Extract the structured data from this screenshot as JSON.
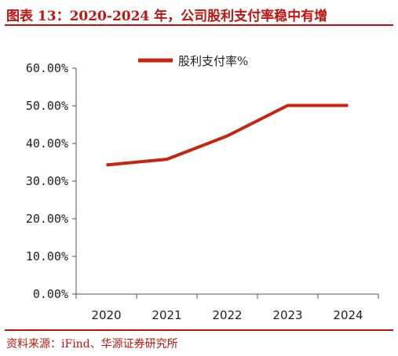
{
  "title": "图表 13：2020-2024 年，公司股利支付率稳中有增",
  "source": "资料来源：iFind、华源证券研究所",
  "colors": {
    "accent": "#c0140f",
    "series": "#c8230f",
    "axis": "#555555",
    "text": "#222222"
  },
  "chart_data": {
    "type": "line",
    "title": "",
    "xlabel": "",
    "ylabel": "",
    "categories": [
      "2020",
      "2021",
      "2022",
      "2023",
      "2024"
    ],
    "series": [
      {
        "name": "股利支付率%",
        "values": [
          34.3,
          35.8,
          42.0,
          50.1,
          50.1
        ]
      }
    ],
    "ylim": [
      0,
      60
    ],
    "yticks": [
      "0.00%",
      "10.00%",
      "20.00%",
      "30.00%",
      "40.00%",
      "50.00%",
      "60.00%"
    ],
    "grid": false,
    "legend_position": "top-center"
  }
}
